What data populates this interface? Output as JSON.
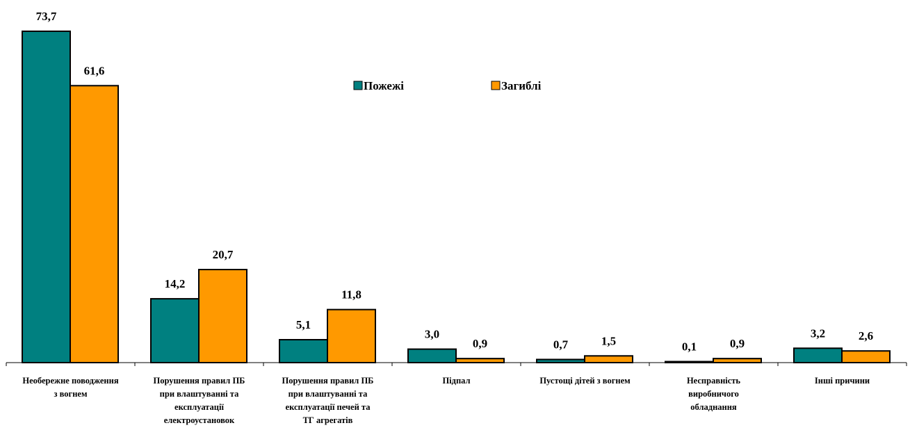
{
  "chart_data": {
    "type": "bar",
    "categories": [
      [
        "Необережне поводження",
        "з вогнем"
      ],
      [
        "Порушення правил ПБ",
        "при влаштуванні та",
        "експлуатації",
        "електроустановок"
      ],
      [
        "Порушення правил ПБ",
        "при влаштуванні та",
        "експлуатації печей та",
        "ТГ агрегатів"
      ],
      [
        "Підпал"
      ],
      [
        "Пустощі дітей з вогнем"
      ],
      [
        "Несправність",
        "виробничого",
        "обладнання"
      ],
      [
        "Інші причини"
      ]
    ],
    "series": [
      {
        "name": "Пожежі",
        "color": "#008080",
        "values": [
          73.7,
          14.2,
          5.1,
          3.0,
          0.7,
          0.1,
          3.2
        ],
        "labels": [
          "73,7",
          "14,2",
          "5,1",
          "3,0",
          "0,7",
          "0,1",
          "3,2"
        ]
      },
      {
        "name": "Загиблі",
        "color": "#FF9900",
        "values": [
          61.6,
          20.7,
          11.8,
          0.9,
          1.5,
          0.9,
          2.6
        ],
        "labels": [
          "61,6",
          "20,7",
          "11,8",
          "0,9",
          "1,5",
          "0,9",
          "2,6"
        ]
      }
    ],
    "ylim": [
      0,
      73.7
    ],
    "grid": false,
    "legend_position": "top-center"
  }
}
